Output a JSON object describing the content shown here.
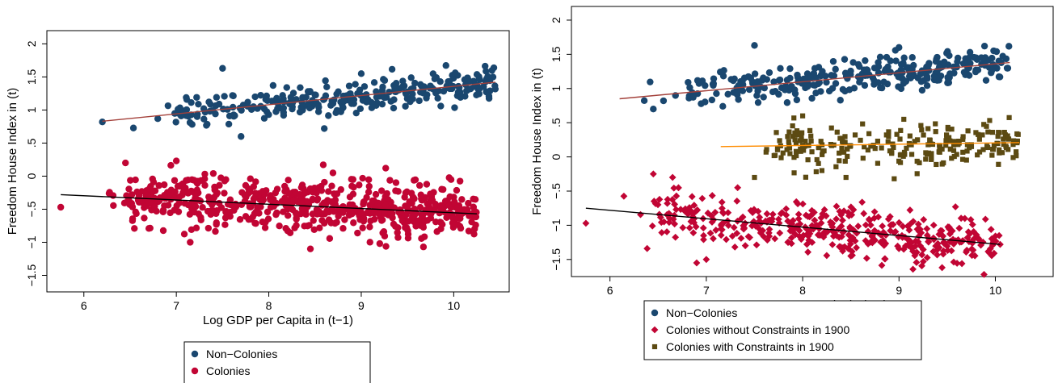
{
  "colors": {
    "non_colonies": "#1a476f",
    "colonies": "#c10534",
    "with_constraints": "#5c4a12",
    "fit_non_colonies": "#a3403a",
    "fit_colonies": "#000000",
    "fit_with_constraints": "#ff8c00"
  },
  "chart_data": [
    {
      "type": "scatter",
      "title": "",
      "xlabel": "Log GDP per Capita in (t−1)",
      "ylabel": "Freedom House Index in (t)",
      "xlim": [
        5.6,
        10.6
      ],
      "ylim": [
        -1.75,
        2.2
      ],
      "xticks": [
        6,
        7,
        8,
        9,
        10
      ],
      "xtick_labels": [
        "6",
        "7",
        "8",
        "9",
        "10"
      ],
      "yticks": [
        -1.5,
        -1,
        -0.5,
        0,
        0.5,
        1,
        1.5,
        2
      ],
      "ytick_labels": [
        "−1.5",
        "−1",
        "−.5",
        "0",
        ".5",
        "1",
        "1.5",
        "2"
      ],
      "grid": false,
      "legend_position": "bottom",
      "series": [
        {
          "name": "Non−Colonies",
          "marker": "circle",
          "color": "#1a476f",
          "x_range": [
            6.2,
            10.45
          ],
          "fit": [
            [
              6.2,
              0.83
            ],
            [
              10.45,
              1.42
            ]
          ],
          "fit_color": "#a3403a",
          "spread": 0.12,
          "n": 300,
          "seed": 11,
          "outliers": [
            [
              7.5,
              1.63
            ],
            [
              6.2,
              0.82
            ],
            [
              7.7,
              0.6
            ],
            [
              8.6,
              0.72
            ],
            [
              9.0,
              1.55
            ]
          ]
        },
        {
          "name": "Colonies",
          "marker": "circle",
          "color": "#c10534",
          "x_range": [
            5.75,
            10.25
          ],
          "fit": [
            [
              5.75,
              -0.28
            ],
            [
              10.25,
              -0.57
            ]
          ],
          "fit_color": "#000000",
          "spread": 0.2,
          "n": 600,
          "seed": 23,
          "outliers": [
            [
              6.45,
              0.2
            ],
            [
              7.0,
              0.23
            ],
            [
              8.45,
              -1.1
            ],
            [
              9.2,
              -1.02
            ],
            [
              7.15,
              -1.0
            ],
            [
              5.75,
              -0.47
            ]
          ]
        }
      ]
    },
    {
      "type": "scatter",
      "title": "",
      "xlabel": "Log GDP per Capita in (t−1)",
      "ylabel": "Freedom House Index in (t)",
      "xlim": [
        5.6,
        10.6
      ],
      "ylim": [
        -1.75,
        2.2
      ],
      "xticks": [
        6,
        7,
        8,
        9,
        10
      ],
      "xtick_labels": [
        "6",
        "7",
        "8",
        "9",
        "10"
      ],
      "yticks": [
        -1.5,
        -1,
        -0.5,
        0,
        0.5,
        1,
        1.5,
        2
      ],
      "ytick_labels": [
        "−1.5",
        "−1",
        "−.5",
        "0",
        ".5",
        "1",
        "1.5",
        "2"
      ],
      "grid": false,
      "legend_position": "bottom",
      "series": [
        {
          "name": "Non−Colonies",
          "marker": "circle",
          "color": "#1a476f",
          "x_range": [
            6.1,
            10.15
          ],
          "fit": [
            [
              6.1,
              0.85
            ],
            [
              10.15,
              1.38
            ]
          ],
          "fit_color": "#a3403a",
          "spread": 0.12,
          "n": 300,
          "seed": 37,
          "outliers": [
            [
              7.5,
              1.63
            ],
            [
              9.0,
              1.6
            ],
            [
              6.45,
              0.7
            ]
          ]
        },
        {
          "name": "Colonies without Constraints in 1900",
          "marker": "diamond",
          "color": "#c10534",
          "x_range": [
            5.75,
            10.05
          ],
          "fit": [
            [
              5.75,
              -0.75
            ],
            [
              10.05,
              -1.28
            ]
          ],
          "fit_color": "#000000",
          "spread": 0.18,
          "n": 420,
          "seed": 53,
          "outliers": [
            [
              6.45,
              -0.25
            ],
            [
              6.65,
              -0.3
            ],
            [
              7.0,
              -1.5
            ],
            [
              6.9,
              -1.55
            ],
            [
              8.5,
              -1.45
            ],
            [
              5.75,
              -0.97
            ],
            [
              10.05,
              -1.28
            ]
          ]
        },
        {
          "name": "Colonies with Constraints in 1900",
          "marker": "square",
          "color": "#5c4a12",
          "x_range": [
            7.15,
            10.25
          ],
          "fit": [
            [
              7.15,
              0.15
            ],
            [
              10.25,
              0.21
            ]
          ],
          "fit_color": "#ff8c00",
          "spread": 0.16,
          "n": 230,
          "seed": 71,
          "outliers": [
            [
              8.0,
              0.6
            ],
            [
              9.05,
              0.55
            ],
            [
              7.5,
              -0.3
            ],
            [
              8.2,
              -0.2
            ],
            [
              8.45,
              -0.3
            ],
            [
              8.95,
              -0.32
            ]
          ]
        }
      ]
    }
  ]
}
